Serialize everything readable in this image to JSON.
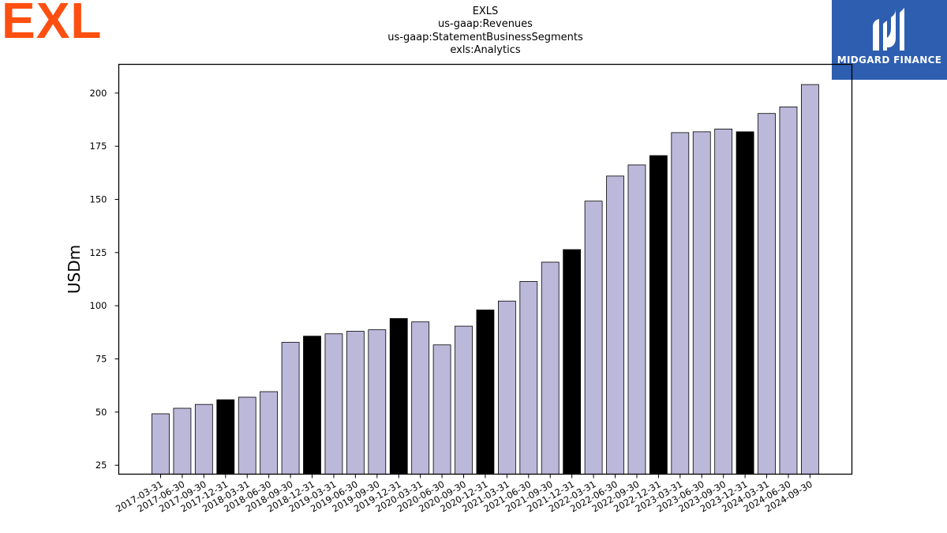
{
  "logos": {
    "brand": {
      "text": "EXL",
      "color": "#fe4f12"
    },
    "partner": {
      "name": "MIDGARD FINANCE",
      "background": "#2d5eb0"
    }
  },
  "chart_data": {
    "type": "bar",
    "title_lines": [
      "EXLS",
      "us-gaap:Revenues",
      "us-gaap:StatementBusinessSegments",
      "exls:Analytics"
    ],
    "ylabel": "USDm",
    "xlabel": "",
    "ylim": [
      20.8,
      213.5
    ],
    "yticks": [
      25,
      50,
      75,
      100,
      125,
      150,
      175,
      200
    ],
    "grid": false,
    "colors": {
      "default": "#bcb8da",
      "highlight": "#000000"
    },
    "categories": [
      "2017-03-31",
      "2017-06-30",
      "2017-09-30",
      "2017-12-31",
      "2018-03-31",
      "2018-06-30",
      "2018-09-30",
      "2018-12-31",
      "2019-03-31",
      "2019-06-30",
      "2019-09-30",
      "2019-12-31",
      "2020-03-31",
      "2020-06-30",
      "2020-09-30",
      "2020-12-31",
      "2021-03-31",
      "2021-06-30",
      "2021-09-30",
      "2021-12-31",
      "2022-03-31",
      "2022-06-30",
      "2022-09-30",
      "2022-12-31",
      "2023-03-31",
      "2023-06-30",
      "2023-09-30",
      "2023-12-31",
      "2024-03-31",
      "2024-06-30",
      "2024-09-30"
    ],
    "values": [
      49.2,
      51.8,
      53.6,
      55.8,
      57.0,
      59.6,
      82.8,
      85.7,
      86.8,
      88.0,
      88.7,
      94.0,
      92.4,
      81.6,
      90.4,
      98.0,
      102.2,
      111.4,
      120.5,
      126.4,
      149.2,
      161.0,
      166.2,
      170.6,
      181.4,
      181.8,
      183.1,
      181.8,
      190.4,
      193.5,
      204.0
    ],
    "highlight": [
      false,
      false,
      false,
      true,
      false,
      false,
      false,
      true,
      false,
      false,
      false,
      true,
      false,
      false,
      false,
      true,
      false,
      false,
      false,
      true,
      false,
      false,
      false,
      true,
      false,
      false,
      false,
      true,
      false,
      false,
      false
    ]
  }
}
